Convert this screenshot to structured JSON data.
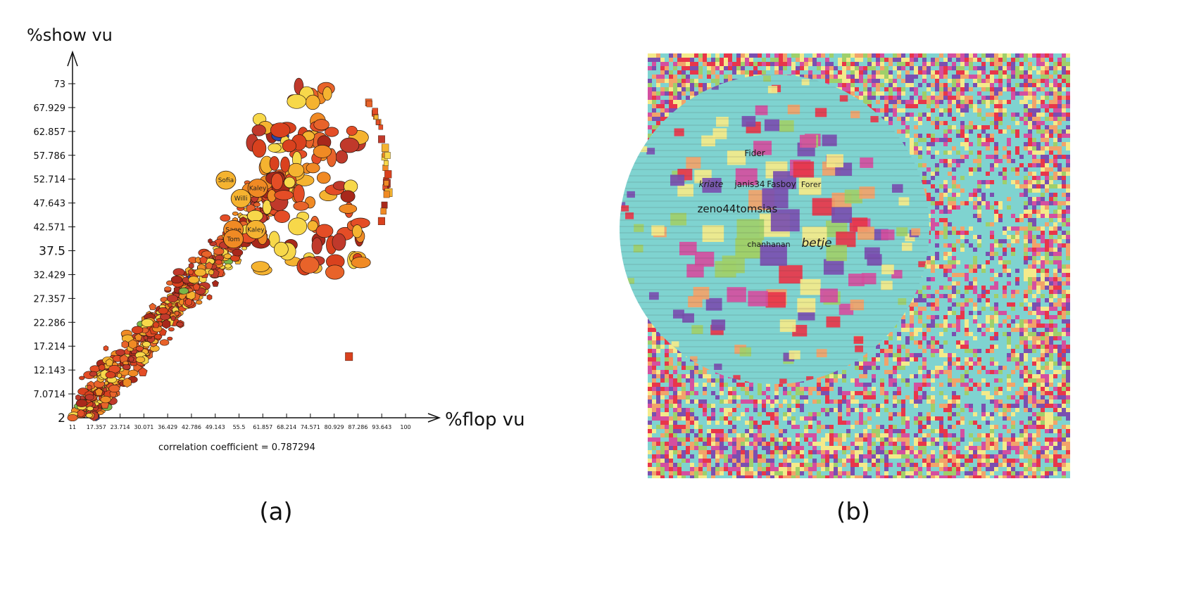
{
  "figure": {
    "panel_a_label": "(a)",
    "panel_b_label": "(b)"
  },
  "chart_data": [
    {
      "type": "scatter",
      "ylabel": "%show vu",
      "xlabel": "%flop vu",
      "annotation": "correlation coefficient = 0.787294",
      "xlim": [
        11,
        100
      ],
      "ylim": [
        2,
        73
      ],
      "x_ticks": [
        "11",
        "17.357",
        "23.714",
        "30.071",
        "36.429",
        "42.786",
        "49.143",
        "55.5",
        "61.857",
        "68.214",
        "74.571",
        "80.929",
        "87.286",
        "93.643",
        "100"
      ],
      "y_ticks": [
        "2",
        "7.0714",
        "12.143",
        "17.214",
        "22.286",
        "27.357",
        "32.429",
        "37.5",
        "42.571",
        "47.643",
        "52.714",
        "57.786",
        "62.857",
        "67.929",
        "73"
      ],
      "grid": false,
      "colors": {
        "bg": "#ffffff",
        "marker_palette": [
          "#c0392b",
          "#d9411e",
          "#e8632a",
          "#f08a24",
          "#f5b330",
          "#f7d84a",
          "#e44d26",
          "#a8281b"
        ],
        "outline": "#2b1a10",
        "accent_green": "#7ab648",
        "accent_blue": "#2946a8"
      },
      "labelled_points": [
        {
          "label": "Sofia",
          "x": 52.0,
          "y": 52.5
        },
        {
          "label": "Kaley",
          "x": 60.5,
          "y": 50.8
        },
        {
          "label": "Willi",
          "x": 56.0,
          "y": 48.6
        },
        {
          "label": "Sage",
          "x": 54.0,
          "y": 42.0
        },
        {
          "label": "Kaley",
          "x": 60.0,
          "y": 42.0
        },
        {
          "label": "Tom",
          "x": 54.0,
          "y": 40.0
        }
      ]
    },
    {
      "type": "heatmap",
      "visible_words": [
        "Fider",
        "kriate",
        "janis34",
        "Fasboy",
        "Forer",
        "zeno44",
        "tomsias",
        "betje",
        "chanhanan"
      ],
      "colors": {
        "teal": "#7fd3d0",
        "magenta": "#d44fa0",
        "purple": "#7a4fb0",
        "yellow": "#f4ea8a",
        "green": "#9fcf6a",
        "red": "#e8364a",
        "orange": "#f2a36a"
      }
    }
  ]
}
